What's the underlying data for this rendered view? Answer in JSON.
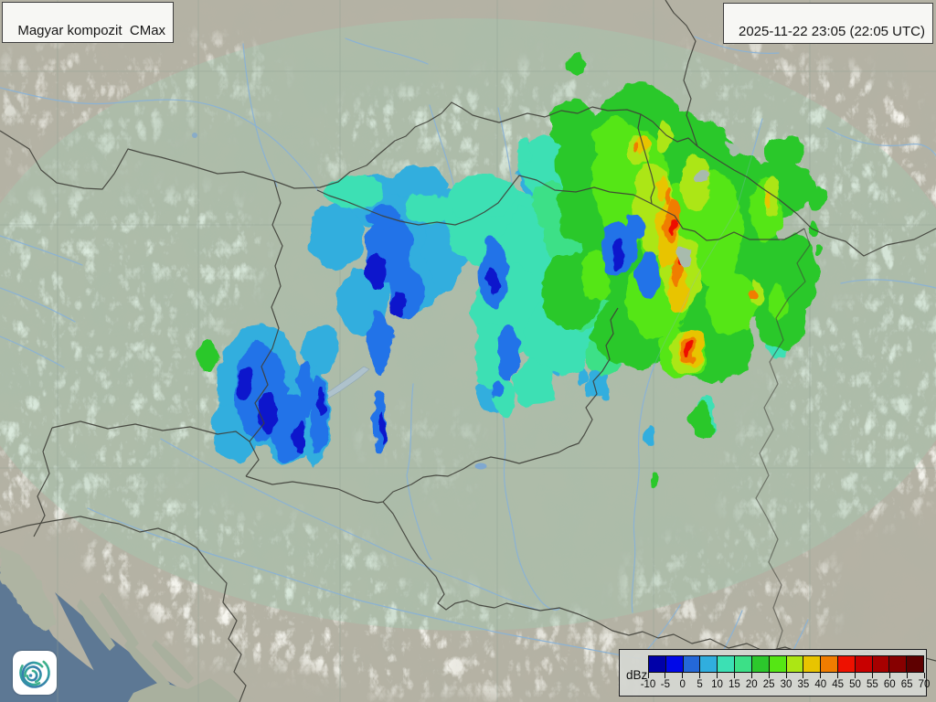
{
  "header": {
    "title": "Magyar kompozit  CMax",
    "timestamp": "2025-11-22 23:05 (22:05 UTC)"
  },
  "legend": {
    "unit": "dBz",
    "tick_values": [
      -10,
      -5,
      0,
      5,
      10,
      15,
      20,
      25,
      30,
      35,
      40,
      45,
      50,
      55,
      60,
      65,
      70
    ],
    "colors": [
      "#0000a8",
      "#0008e8",
      "#2468d8",
      "#30aede",
      "#3ce0b4",
      "#3ce087",
      "#2cc82c",
      "#55e614",
      "#ace614",
      "#e8c400",
      "#f07d00",
      "#ee1100",
      "#c80000",
      "#a60000",
      "#870000",
      "#5e0000"
    ]
  },
  "logo": {
    "name": "hungaromet-swirl-logo"
  },
  "map": {
    "colors": {
      "sea": "#5d7894",
      "land": "#b5b2a4",
      "coverage_tint": "#a0cdb4",
      "border": "#3f3f38",
      "river": "#8ab2d6",
      "graticule": "#8f9f93"
    }
  }
}
